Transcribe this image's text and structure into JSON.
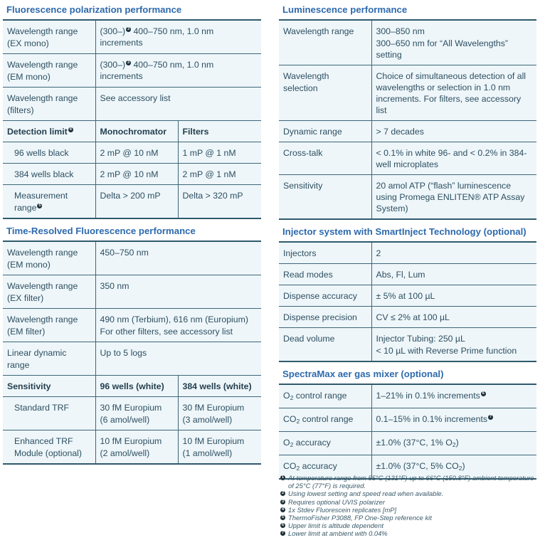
{
  "left": [
    {
      "title": "Fluorescence polarization performance",
      "cols": [
        130,
        null
      ],
      "rows": [
        {
          "cells": [
            [
              "Wavelength range",
              "(EX mono)"
            ],
            [
              [
                [
                  "(300–)",
                  {
                    "sup": "3"
                  },
                  " 400–750 nm, 1.0 nm increments"
                ]
              ]
            ]
          ],
          "span2": true
        },
        {
          "cells": [
            [
              "Wavelength range",
              "(EM mono)"
            ],
            [
              [
                [
                  "(300–)",
                  {
                    "sup": "3"
                  },
                  " 400–750 nm, 1.0 nm increments"
                ]
              ]
            ]
          ],
          "span2": true
        },
        {
          "cells": [
            [
              "Wavelength range",
              "(filters)"
            ],
            "See accessory list"
          ],
          "span2": true
        },
        {
          "type": "hdr",
          "cells": [
            [
              [
                "Detection limit",
                {
                  "sup": "4"
                }
              ]
            ],
            "Monochromator",
            "Filters"
          ]
        },
        {
          "indent": true,
          "cells": [
            "96 wells black",
            "2 mP @ 10 nM",
            "1 mP @ 1 nM"
          ]
        },
        {
          "indent": true,
          "cells": [
            "384 wells black",
            "2 mP @ 10 nM",
            "2 mP @ 1 nM"
          ]
        },
        {
          "indent": true,
          "cells": [
            [
              "Measurement",
              [
                "range",
                {
                  "sup": "5"
                }
              ]
            ],
            "Delta > 200 mP",
            "Delta > 320 mP"
          ]
        }
      ]
    },
    {
      "title": "Time-Resolved Fluorescence performance",
      "cols": [
        130,
        null
      ],
      "rows": [
        {
          "cells": [
            [
              "Wavelength range",
              "(EM mono)"
            ],
            "450–750 nm"
          ],
          "span2": true,
          "tall": true
        },
        {
          "cells": [
            [
              "Wavelength range",
              "(EX filter)"
            ],
            "350 nm"
          ],
          "span2": true,
          "tall": true
        },
        {
          "cells": [
            [
              "Wavelength range",
              "(EM filter)"
            ],
            [
              "490 nm (Terbium), 616 nm (Europium)",
              "For other filters, see accessory list"
            ]
          ],
          "span2": true
        },
        {
          "cells": [
            [
              "Linear dynamic",
              "range"
            ],
            "Up to 5 logs"
          ],
          "span2": true
        },
        {
          "type": "hdr",
          "cells": [
            "Sensitivity",
            "96 wells (white)",
            "384 wells (white)"
          ]
        },
        {
          "indent": true,
          "cells": [
            "Standard TRF",
            [
              "30 fM Europium",
              "(6 amol/well)"
            ],
            [
              "30 fM Europium",
              "(3 amol/well)"
            ]
          ]
        },
        {
          "indent": true,
          "cells": [
            [
              "Enhanced TRF",
              "Module (optional)"
            ],
            [
              "10 fM Europium",
              "(2 amol/well)"
            ],
            [
              "10 fM Europium",
              "(1 amol/well)"
            ]
          ]
        }
      ]
    }
  ],
  "right": [
    {
      "title": "Luminescence performance",
      "rows": [
        {
          "cells": [
            "Wavelength range",
            [
              "300–850 nm",
              "300–650 nm for “All Wavelengths” setting"
            ]
          ]
        },
        {
          "cells": [
            [
              "Wavelength",
              "selection"
            ],
            "Choice of simultaneous detection of all wavelengths or selection in 1.0 nm increments. For filters, see accessory list"
          ]
        },
        {
          "cells": [
            "Dynamic range",
            "> 7 decades"
          ]
        },
        {
          "cells": [
            "Cross-talk",
            "< 0.1% in white 96- and < 0.2% in 384-well microplates"
          ]
        },
        {
          "cells": [
            "Sensitivity",
            "20 amol ATP (“flash” luminescence using Promega ENLITEN® ATP Assay System)"
          ]
        }
      ]
    },
    {
      "title": "Injector system with SmartInject Technology (optional)",
      "rows": [
        {
          "cells": [
            "Injectors",
            "2"
          ]
        },
        {
          "cells": [
            "Read modes",
            "Abs, Fl, Lum"
          ]
        },
        {
          "cells": [
            "Dispense accuracy",
            "± 5% at 100 µL"
          ]
        },
        {
          "cells": [
            "Dispense precision",
            "CV ≤ 2% at 100 µL"
          ]
        },
        {
          "cells": [
            "Dead volume",
            [
              "Injector Tubing: 250 µL",
              "< 10 µL with Reverse Prime function"
            ]
          ]
        }
      ]
    },
    {
      "title": "SpectraMax aer gas mixer (optional)",
      "rows": [
        {
          "cells": [
            [
              [
                "O",
                {
                  "sub": "2"
                },
                " control range"
              ]
            ],
            [
              [
                "1–21% in 0.1% increments",
                {
                  "sup": "6"
                }
              ]
            ]
          ]
        },
        {
          "cells": [
            [
              [
                "CO",
                {
                  "sub": "2"
                },
                " control range"
              ]
            ],
            [
              [
                "0.1–15% in 0.1% increments",
                {
                  "sup": "7"
                }
              ]
            ]
          ]
        },
        {
          "cells": [
            [
              [
                "O",
                {
                  "sub": "2"
                },
                " accuracy"
              ]
            ],
            [
              [
                "±1.0% (37°C, 1% O",
                {
                  "sub": "2"
                },
                ")"
              ]
            ]
          ]
        },
        {
          "cells": [
            [
              [
                "CO",
                {
                  "sub": "2"
                },
                " accuracy"
              ]
            ],
            [
              [
                "±1.0% (37°C, 5% CO",
                {
                  "sub": "2"
                },
                ")"
              ]
            ]
          ]
        }
      ]
    }
  ],
  "footnotes": [
    {
      "n": "1",
      "text": "At temperature range from 55°C (131°F) up to 66°C (150.8°F) ambient temperature of 25°C (77°F) is required."
    },
    {
      "n": "2",
      "text": "Using lowest setting and speed read when available."
    },
    {
      "n": "3",
      "text": "Requires optional UVIS polarizer"
    },
    {
      "n": "4",
      "text": "1x Stdev Fluorescein replicates [mP]"
    },
    {
      "n": "5",
      "text": "ThermoFisher P3088, FP One-Step reference kit"
    },
    {
      "n": "6",
      "text": "Upper limit is altitude dependent"
    },
    {
      "n": "7",
      "text": "Lower limit at ambient with 0.04%"
    }
  ]
}
